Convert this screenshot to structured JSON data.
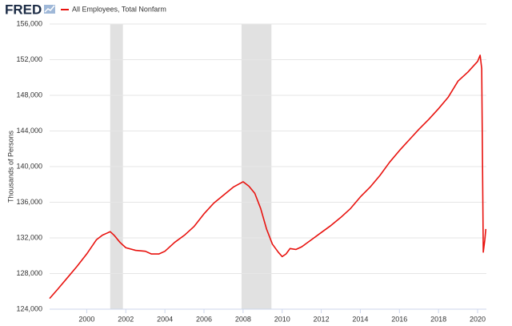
{
  "header": {
    "logo": "FRED"
  },
  "chart_data": {
    "type": "line",
    "y_axis_label": "Thousands of Persons",
    "x": [
      1998.1,
      1998.5,
      1999.0,
      1999.5,
      2000.0,
      2000.5,
      2000.8,
      2001.0,
      2001.2,
      2001.4,
      2001.7,
      2002.0,
      2002.5,
      2003.0,
      2003.3,
      2003.7,
      2004.0,
      2004.5,
      2005.0,
      2005.5,
      2006.0,
      2006.5,
      2007.0,
      2007.5,
      2008.0,
      2008.3,
      2008.6,
      2008.9,
      2009.2,
      2009.5,
      2009.8,
      2010.0,
      2010.2,
      2010.4,
      2010.7,
      2011.0,
      2011.5,
      2012.0,
      2012.5,
      2013.0,
      2013.5,
      2014.0,
      2014.5,
      2015.0,
      2015.5,
      2016.0,
      2016.5,
      2017.0,
      2017.5,
      2018.0,
      2018.5,
      2019.0,
      2019.5,
      2020.0,
      2020.13,
      2020.21,
      2020.29,
      2020.37,
      2020.42
    ],
    "series": [
      {
        "name": "All Employees, Total Nonfarm",
        "color": "#e8120e",
        "values": [
          125200,
          126200,
          127500,
          128800,
          130200,
          131800,
          132300,
          132500,
          132700,
          132300,
          131500,
          130900,
          130600,
          130500,
          130200,
          130200,
          130500,
          131500,
          132300,
          133300,
          134700,
          135900,
          136800,
          137700,
          138300,
          137800,
          137000,
          135300,
          133000,
          131300,
          130400,
          129900,
          130200,
          130800,
          130700,
          131000,
          131800,
          132600,
          133400,
          134300,
          135300,
          136600,
          137700,
          139000,
          140500,
          141800,
          143000,
          144200,
          145300,
          146500,
          147800,
          149600,
          150600,
          151800,
          152500,
          151000,
          130400,
          131800,
          133000
        ]
      }
    ],
    "shaded_regions": [
      [
        2001.2,
        2001.85
      ],
      [
        2007.92,
        2009.45
      ]
    ],
    "xlim": [
      1998.1,
      2020.45
    ],
    "xticks": [
      2000,
      2002,
      2004,
      2006,
      2008,
      2010,
      2012,
      2014,
      2016,
      2018,
      2020
    ],
    "ylim": [
      124000,
      156000
    ],
    "yticks": [
      {
        "value": 124000,
        "label": "124,000"
      },
      {
        "value": 128000,
        "label": "128,000"
      },
      {
        "value": 132000,
        "label": "132,000"
      },
      {
        "value": 136000,
        "label": "136,000"
      },
      {
        "value": 140000,
        "label": "140,000"
      },
      {
        "value": 144000,
        "label": "144,000"
      },
      {
        "value": 148000,
        "label": "148,000"
      },
      {
        "value": 152000,
        "label": "152,000"
      },
      {
        "value": 156000,
        "label": "156,000"
      }
    ],
    "grid": true
  }
}
